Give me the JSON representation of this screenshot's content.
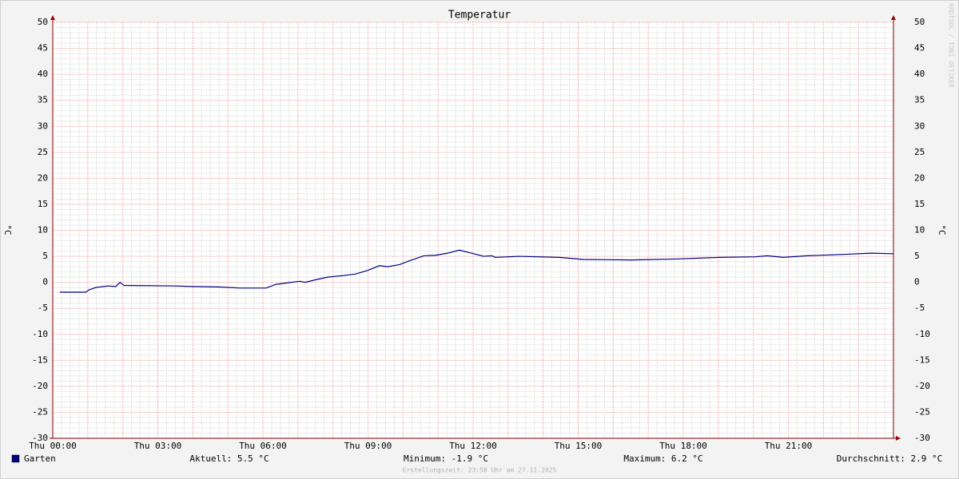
{
  "chart_data": {
    "type": "line",
    "title": "Temperatur",
    "y_label": "°C",
    "watermark": "RRDTOOL / TOBI OETIKER",
    "xlim": [
      0,
      24
    ],
    "xticks": [
      {
        "value": 0,
        "label": "Thu 00:00"
      },
      {
        "value": 3,
        "label": "Thu 03:00"
      },
      {
        "value": 6,
        "label": "Thu 06:00"
      },
      {
        "value": 9,
        "label": "Thu 09:00"
      },
      {
        "value": 12,
        "label": "Thu 12:00"
      },
      {
        "value": 15,
        "label": "Thu 15:00"
      },
      {
        "value": 18,
        "label": "Thu 18:00"
      },
      {
        "value": 21,
        "label": "Thu 21:00"
      }
    ],
    "ylim": [
      -30,
      50
    ],
    "yticks": [
      -30,
      -25,
      -20,
      -15,
      -10,
      -5,
      0,
      5,
      10,
      15,
      20,
      25,
      30,
      35,
      40,
      45,
      50
    ],
    "grid": true,
    "x": [
      0.2,
      0.94,
      1.05,
      1.23,
      1.57,
      1.8,
      1.92,
      2.03,
      3.51,
      3.97,
      4.77,
      5.34,
      6.09,
      6.37,
      6.71,
      7.05,
      7.21,
      7.51,
      7.85,
      8.3,
      8.65,
      8.99,
      9.33,
      9.56,
      9.9,
      10.13,
      10.59,
      10.93,
      11.27,
      11.61,
      11.96,
      12.3,
      12.53,
      12.64,
      13.32,
      14.46,
      15.15,
      16.52,
      17.89,
      19.03,
      20.05,
      20.4,
      20.85,
      21.54,
      22.68,
      23.36,
      24
    ],
    "series": [
      {
        "name": "Garten",
        "color": "#000080",
        "values": [
          -1.9,
          -1.9,
          -1.4,
          -1.0,
          -0.7,
          -0.8,
          0,
          -0.6,
          -0.7,
          -0.8,
          -0.9,
          -1.1,
          -1.1,
          -0.4,
          -0.1,
          0.2,
          0.0,
          0.5,
          1.0,
          1.3,
          1.6,
          2.3,
          3.2,
          3.0,
          3.4,
          4.0,
          5.1,
          5.2,
          5.6,
          6.2,
          5.6,
          5.0,
          5.1,
          4.8,
          5.0,
          4.8,
          4.4,
          4.3,
          4.5,
          4.8,
          4.9,
          5.1,
          4.8,
          5.1,
          5.4,
          5.6,
          5.5
        ]
      }
    ],
    "stats": [
      "Aktuell: 5.5 °C",
      "Minimum: -1.9 °C",
      "Maximum: 6.2 °C",
      "Durchschnitt: 2.9 °C"
    ],
    "footer": "Erstellungszeit: 23:58 Uhr am 27.11.2025"
  }
}
